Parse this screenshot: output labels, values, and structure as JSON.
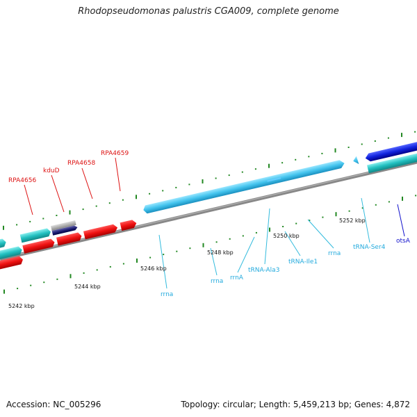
{
  "title": "Rhodopseudomonas palustris CGA009, complete genome",
  "footer": {
    "accession": "Accession: NC_005296",
    "topology": "Topology: circular; Length: 5,459,213 bp; Genes: 4,872"
  },
  "ruler": {
    "labels": [
      "5242 kbp",
      "5244 kbp",
      "5246 kbp",
      "5248 kbp",
      "5250 kbp",
      "5252 kbp"
    ]
  },
  "genes": {
    "red": [
      "RPA4656",
      "kduD",
      "RPA4658",
      "RPA4659"
    ],
    "cyan": [
      "rrna",
      "rrna",
      "rrnA",
      "tRNA-Ala3",
      "tRNA-Ile1",
      "rrna",
      "tRNA-Ser4"
    ],
    "blue": [
      "otsA"
    ]
  },
  "colors": {
    "red": "#dd1111",
    "cyan": "#33bbdd",
    "teal": "#22bbbb",
    "blue": "#1111cc",
    "tick": "#228822",
    "backbone": "#888888"
  }
}
